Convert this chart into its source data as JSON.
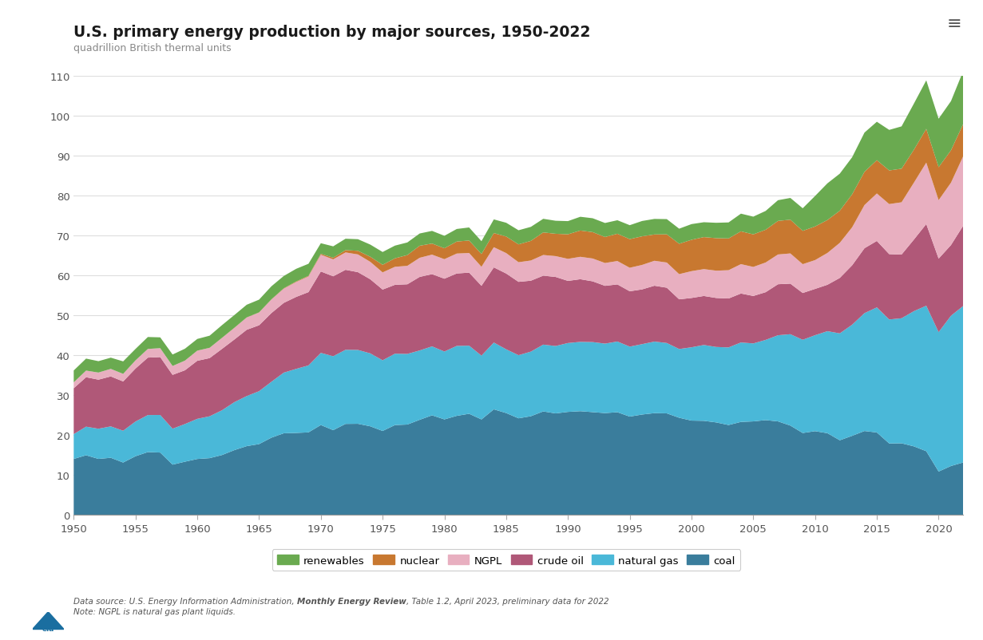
{
  "title": "U.S. primary energy production by major sources, 1950-2022",
  "subtitle": "quadrillion British thermal units",
  "years": [
    1950,
    1951,
    1952,
    1953,
    1954,
    1955,
    1956,
    1957,
    1958,
    1959,
    1960,
    1961,
    1962,
    1963,
    1964,
    1965,
    1966,
    1967,
    1968,
    1969,
    1970,
    1971,
    1972,
    1973,
    1974,
    1975,
    1976,
    1977,
    1978,
    1979,
    1980,
    1981,
    1982,
    1983,
    1984,
    1985,
    1986,
    1987,
    1988,
    1989,
    1990,
    1991,
    1992,
    1993,
    1994,
    1995,
    1996,
    1997,
    1998,
    1999,
    2000,
    2001,
    2002,
    2003,
    2004,
    2005,
    2006,
    2007,
    2008,
    2009,
    2010,
    2011,
    2012,
    2013,
    2014,
    2015,
    2016,
    2017,
    2018,
    2019,
    2020,
    2021,
    2022
  ],
  "coal": [
    14.06,
    14.98,
    14.07,
    14.35,
    13.16,
    14.74,
    15.78,
    15.66,
    12.63,
    13.37,
    14.05,
    14.26,
    15.04,
    16.27,
    17.27,
    17.78,
    19.39,
    20.49,
    20.58,
    20.72,
    22.56,
    21.27,
    22.84,
    22.87,
    22.24,
    21.07,
    22.55,
    22.68,
    23.87,
    24.99,
    23.97,
    24.86,
    25.38,
    23.96,
    26.49,
    25.56,
    24.24,
    24.77,
    25.97,
    25.47,
    25.85,
    26.03,
    25.79,
    25.55,
    25.77,
    24.67,
    25.19,
    25.54,
    25.48,
    24.38,
    23.67,
    23.61,
    23.21,
    22.56,
    23.34,
    23.47,
    23.79,
    23.47,
    22.42,
    20.56,
    21.02,
    20.51,
    18.74,
    19.85,
    21.06,
    20.69,
    17.94,
    17.98,
    17.21,
    16.0,
    10.9,
    12.29,
    13.19
  ],
  "natural_gas": [
    6.23,
    7.17,
    7.56,
    7.87,
    7.97,
    8.7,
    9.28,
    9.42,
    9.01,
    9.44,
    10.06,
    10.49,
    11.22,
    12.02,
    12.55,
    13.26,
    14.01,
    15.2,
    16.05,
    16.78,
    18.08,
    18.53,
    18.58,
    18.51,
    18.28,
    17.71,
    17.89,
    17.7,
    17.38,
    17.28,
    17.01,
    17.53,
    17.07,
    15.99,
    16.74,
    15.98,
    15.82,
    16.19,
    16.74,
    16.89,
    17.26,
    17.37,
    17.56,
    17.41,
    17.72,
    17.54,
    17.64,
    17.93,
    17.64,
    17.23,
    18.37,
    19.01,
    18.91,
    19.45,
    19.91,
    19.54,
    20.1,
    21.59,
    22.9,
    23.36,
    24.05,
    25.57,
    26.79,
    27.85,
    29.54,
    31.35,
    31.07,
    31.34,
    33.89,
    36.46,
    34.94,
    37.66,
    39.24
  ],
  "crude_oil": [
    11.49,
    12.39,
    12.3,
    12.52,
    12.35,
    13.28,
    14.39,
    14.51,
    13.49,
    13.47,
    14.55,
    14.58,
    15.38,
    15.7,
    16.61,
    16.52,
    17.22,
    17.48,
    18.03,
    18.37,
    20.4,
    20.03,
    20.04,
    19.49,
    18.57,
    17.73,
    17.26,
    17.45,
    18.43,
    18.1,
    18.25,
    18.15,
    18.3,
    17.5,
    18.84,
    18.99,
    18.38,
    17.77,
    17.28,
    17.31,
    15.57,
    15.7,
    15.22,
    14.48,
    14.31,
    13.87,
    13.72,
    14.0,
    13.85,
    12.45,
    12.36,
    12.28,
    12.28,
    12.26,
    12.27,
    11.89,
    11.96,
    12.78,
    12.67,
    11.73,
    11.6,
    11.63,
    13.89,
    14.89,
    16.27,
    16.65,
    16.38,
    15.96,
    17.94,
    20.47,
    18.42,
    17.71,
    20.14
  ],
  "NGPL": [
    1.48,
    1.66,
    1.78,
    1.89,
    1.9,
    2.04,
    2.18,
    2.23,
    2.23,
    2.41,
    2.53,
    2.57,
    2.74,
    2.9,
    3.06,
    3.19,
    3.38,
    3.56,
    3.74,
    3.93,
    4.19,
    4.25,
    4.35,
    4.44,
    4.37,
    4.3,
    4.51,
    4.62,
    4.79,
    4.89,
    4.89,
    4.99,
    4.92,
    4.76,
    5.05,
    5.12,
    4.92,
    5.06,
    5.18,
    5.22,
    5.52,
    5.62,
    5.72,
    5.72,
    5.86,
    5.89,
    6.13,
    6.25,
    6.31,
    6.31,
    6.72,
    6.73,
    6.84,
    7.09,
    7.36,
    7.28,
    7.44,
    7.46,
    7.57,
    7.22,
    7.22,
    7.97,
    8.79,
    9.52,
    10.82,
    11.9,
    12.54,
    13.1,
    14.26,
    15.39,
    14.65,
    15.63,
    17.43
  ],
  "nuclear": [
    0.0,
    0.0,
    0.0,
    0.0,
    0.0,
    0.0,
    0.0,
    0.0,
    0.0,
    0.01,
    0.01,
    0.02,
    0.03,
    0.04,
    0.04,
    0.04,
    0.06,
    0.09,
    0.14,
    0.15,
    0.24,
    0.41,
    0.58,
    0.91,
    1.27,
    1.9,
    2.13,
    2.7,
    3.02,
    2.78,
    2.74,
    3.01,
    3.13,
    3.2,
    3.55,
    4.15,
    4.47,
    4.92,
    5.66,
    5.6,
    6.16,
    6.58,
    6.61,
    6.52,
    6.84,
    7.18,
    7.17,
    6.6,
    7.07,
    7.61,
    7.86,
    8.03,
    8.15,
    7.96,
    8.22,
    8.16,
    8.21,
    8.41,
    8.46,
    8.35,
    8.43,
    8.26,
    8.05,
    8.27,
    8.33,
    8.34,
    8.43,
    8.42,
    8.26,
    8.46,
    8.26,
    8.12,
    8.08
  ],
  "renewables": [
    2.97,
    3.01,
    2.85,
    2.81,
    3.13,
    2.87,
    2.99,
    2.71,
    2.87,
    2.98,
    2.93,
    3.03,
    3.18,
    3.19,
    3.17,
    3.19,
    3.27,
    3.09,
    3.16,
    3.02,
    2.65,
    2.85,
    2.86,
    2.91,
    3.05,
    3.21,
    3.18,
    3.16,
    3.07,
    3.17,
    3.12,
    3.15,
    3.27,
    3.22,
    3.42,
    3.45,
    3.54,
    3.51,
    3.41,
    3.26,
    3.3,
    3.45,
    3.48,
    3.51,
    3.38,
    3.49,
    3.84,
    3.89,
    3.81,
    3.78,
    3.93,
    3.72,
    3.85,
    4.01,
    4.43,
    4.44,
    4.71,
    5.19,
    5.45,
    5.66,
    7.64,
    9.19,
    9.29,
    9.29,
    9.83,
    9.63,
    10.16,
    10.6,
    11.56,
    12.16,
    12.15,
    12.32,
    13.27
  ],
  "colors": {
    "coal": "#3a7d9c",
    "natural_gas": "#4ab8d8",
    "crude_oil": "#b05878",
    "NGPL": "#e8afc0",
    "nuclear": "#c87830",
    "renewables": "#6aaa50"
  },
  "legend_labels": [
    "renewables",
    "nuclear",
    "NGPL",
    "crude oil",
    "natural gas",
    "coal"
  ],
  "legend_color_keys": [
    "renewables",
    "nuclear",
    "NGPL",
    "crude_oil",
    "natural_gas",
    "coal"
  ],
  "xlim": [
    1950,
    2022
  ],
  "ylim": [
    0,
    110
  ],
  "yticks": [
    0,
    10,
    20,
    30,
    40,
    50,
    60,
    70,
    80,
    90,
    100,
    110
  ],
  "xticks": [
    1950,
    1955,
    1960,
    1965,
    1970,
    1975,
    1980,
    1985,
    1990,
    1995,
    2000,
    2005,
    2010,
    2015,
    2020
  ],
  "footnote_italic": "Data source: U.S. Energy Information Administration, ",
  "footnote_bold_italic": "Monthly Energy Review",
  "footnote_after": ", Table 1.2, April 2023, preliminary data for 2022",
  "footnote2": "Note: NGPL is natural gas plant liquids.",
  "title_color": "#1a1a1a",
  "subtitle_color": "#888888",
  "background_color": "#ffffff",
  "grid_color": "#dddddd",
  "tick_color": "#555555",
  "axis_label_color": "#555555"
}
